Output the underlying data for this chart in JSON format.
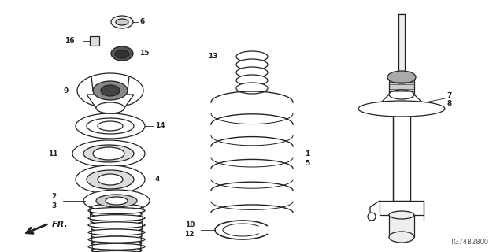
{
  "bg_color": "#ffffff",
  "line_color": "#222222",
  "part_number_code": "TG74B2800",
  "fr_label": "FR."
}
